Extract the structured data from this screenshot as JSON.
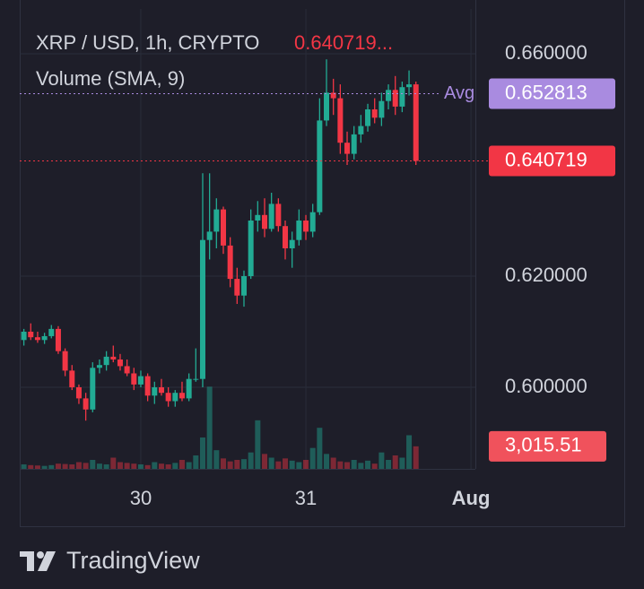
{
  "chart_data": {
    "type": "candlestick",
    "title": "XRP / USD, 1h, CRYPTO",
    "header_price": "0.640719...",
    "volume_title": "Volume (SMA, 9)",
    "avg_label": "Avg",
    "avg_price": 0.652813,
    "last_price": 0.640719,
    "last_volume": {
      "value": 3015.51,
      "label": "3,015.51"
    },
    "logo": "TradingView",
    "up_color": "#22ab94",
    "down_color": "#f23645",
    "avg_color": "#a98be0",
    "grid": true,
    "x": [
      -17,
      -16,
      -15,
      -14,
      -13,
      -12,
      -11,
      -10,
      -9,
      -8,
      -7,
      -6,
      -5,
      -4,
      -3,
      -2,
      -1,
      0,
      1,
      2,
      3,
      4,
      5,
      6,
      7,
      8,
      9,
      10,
      11,
      12,
      13,
      14,
      15,
      16,
      17,
      18,
      19,
      20,
      21,
      22,
      23,
      24,
      25,
      26,
      27,
      28,
      29,
      30,
      31,
      32,
      33,
      34,
      35,
      36,
      37,
      38,
      39,
      40
    ],
    "xlim": [
      -17.6,
      50.6
    ],
    "xticks": [
      {
        "value": 0,
        "label": "30"
      },
      {
        "value": 24,
        "label": "31"
      },
      {
        "value": 48,
        "label": "Aug"
      }
    ],
    "ylim": [
      0.58532,
      0.668065
    ],
    "yticks": [
      {
        "value": 0.66,
        "label": "0.660000"
      },
      {
        "value": 0.62,
        "label": "0.620000"
      },
      {
        "value": 0.6,
        "label": "0.600000"
      }
    ],
    "volume_lim": [
      0,
      12000
    ],
    "open": [
      0.6085,
      0.61,
      0.609,
      0.6085,
      0.6092,
      0.6105,
      0.6065,
      0.603,
      0.6,
      0.598,
      0.596,
      0.6035,
      0.604,
      0.6055,
      0.605,
      0.6038,
      0.6025,
      0.6005,
      0.602,
      0.5985,
      0.6,
      0.599,
      0.5975,
      0.599,
      0.598,
      0.6015,
      0.6015,
      0.6265,
      0.628,
      0.632,
      0.6255,
      0.6195,
      0.6165,
      0.62,
      0.63,
      0.631,
      0.6285,
      0.633,
      0.629,
      0.625,
      0.6265,
      0.63,
      0.628,
      0.6315,
      0.648,
      0.653,
      0.652,
      0.644,
      0.642,
      0.6455,
      0.647,
      0.65,
      0.6485,
      0.6515,
      0.6535,
      0.6505,
      0.654,
      0.6545
    ],
    "high": [
      0.6105,
      0.6115,
      0.61,
      0.6098,
      0.6112,
      0.611,
      0.607,
      0.604,
      0.6005,
      0.599,
      0.6045,
      0.605,
      0.6065,
      0.6075,
      0.606,
      0.605,
      0.6035,
      0.603,
      0.6025,
      0.601,
      0.6015,
      0.6,
      0.5995,
      0.601,
      0.6025,
      0.607,
      0.6385,
      0.6385,
      0.634,
      0.6325,
      0.627,
      0.6215,
      0.621,
      0.632,
      0.6335,
      0.634,
      0.635,
      0.634,
      0.63,
      0.628,
      0.632,
      0.631,
      0.633,
      0.652,
      0.659,
      0.6555,
      0.6545,
      0.646,
      0.647,
      0.649,
      0.651,
      0.652,
      0.653,
      0.6545,
      0.656,
      0.655,
      0.657,
      0.655
    ],
    "low": [
      0.6075,
      0.6085,
      0.608,
      0.6078,
      0.6088,
      0.606,
      0.602,
      0.5995,
      0.597,
      0.594,
      0.5955,
      0.6025,
      0.603,
      0.6045,
      0.603,
      0.602,
      0.5995,
      0.6,
      0.5975,
      0.597,
      0.5985,
      0.5965,
      0.5965,
      0.5975,
      0.5975,
      0.601,
      0.6,
      0.623,
      0.625,
      0.624,
      0.618,
      0.615,
      0.6145,
      0.6195,
      0.628,
      0.627,
      0.628,
      0.628,
      0.623,
      0.6215,
      0.6255,
      0.6265,
      0.627,
      0.631,
      0.647,
      0.649,
      0.642,
      0.64,
      0.641,
      0.644,
      0.646,
      0.6475,
      0.647,
      0.65,
      0.649,
      0.6495,
      0.6525,
      0.64
    ],
    "close": [
      0.61,
      0.609,
      0.6085,
      0.6092,
      0.6105,
      0.6065,
      0.603,
      0.6,
      0.598,
      0.596,
      0.6035,
      0.604,
      0.6055,
      0.605,
      0.6038,
      0.6025,
      0.6005,
      0.602,
      0.5985,
      0.6,
      0.599,
      0.5975,
      0.599,
      0.598,
      0.6015,
      0.6015,
      0.6265,
      0.628,
      0.632,
      0.6255,
      0.6195,
      0.6165,
      0.62,
      0.63,
      0.631,
      0.6285,
      0.633,
      0.629,
      0.625,
      0.6265,
      0.63,
      0.628,
      0.6315,
      0.648,
      0.653,
      0.652,
      0.644,
      0.642,
      0.6455,
      0.647,
      0.65,
      0.6485,
      0.6515,
      0.6535,
      0.6505,
      0.654,
      0.6545,
      0.640719
    ],
    "volume": [
      600,
      500,
      450,
      400,
      500,
      700,
      650,
      600,
      900,
      800,
      1200,
      700,
      600,
      1500,
      900,
      800,
      700,
      600,
      500,
      900,
      700,
      600,
      800,
      1200,
      900,
      1800,
      4200,
      11000,
      2500,
      1400,
      1000,
      1200,
      1300,
      2200,
      6500,
      2000,
      1500,
      1000,
      1400,
      1100,
      900,
      1200,
      2800,
      5500,
      2000,
      1500,
      1000,
      900,
      1200,
      800,
      1100,
      700,
      2200,
      1200,
      1800,
      1500,
      4500,
      3015.51
    ]
  }
}
